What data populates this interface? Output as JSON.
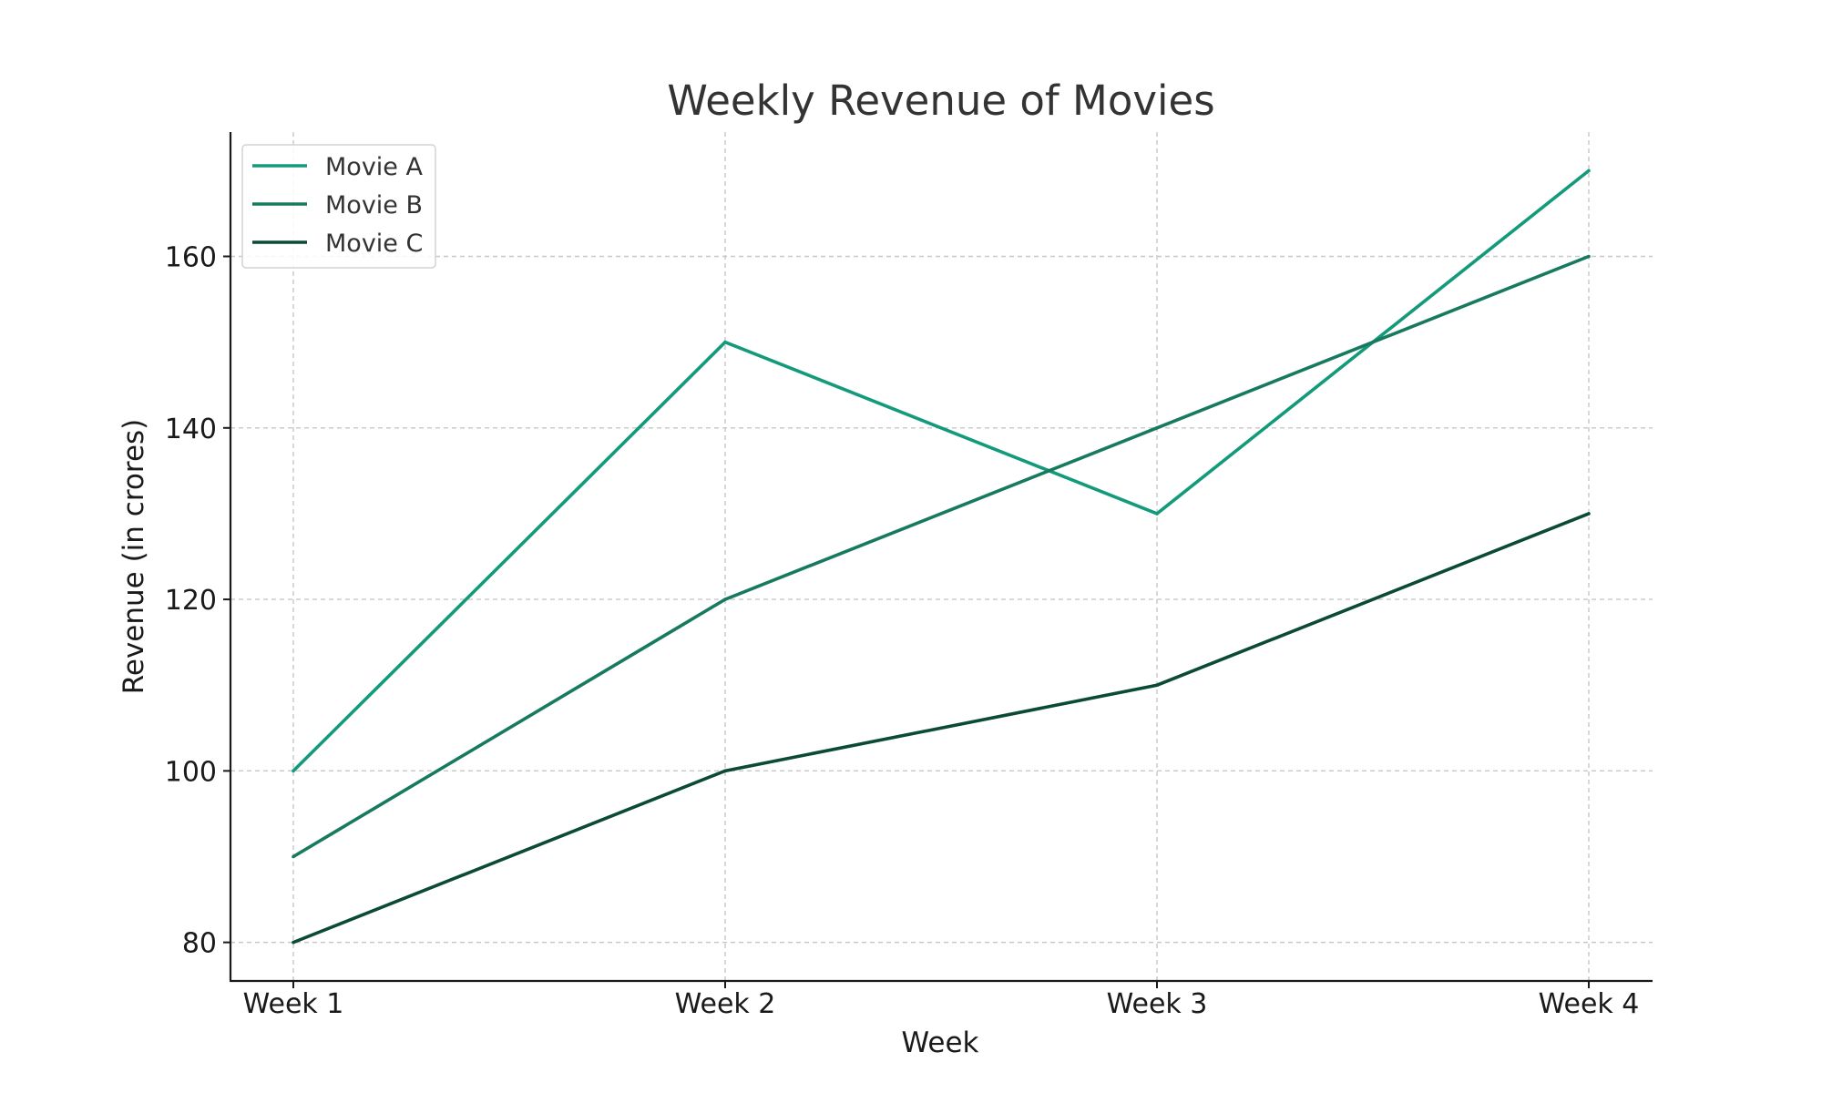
{
  "chart_data": {
    "type": "line",
    "title": "Weekly Revenue of Movies",
    "xlabel": "Week",
    "ylabel": "Revenue (in crores)",
    "categories": [
      "Week 1",
      "Week 2",
      "Week 3",
      "Week 4"
    ],
    "series": [
      {
        "name": "Movie A",
        "values": [
          100,
          150,
          130,
          170
        ],
        "color": "#139a7a"
      },
      {
        "name": "Movie B",
        "values": [
          90,
          120,
          140,
          160
        ],
        "color": "#177a5f"
      },
      {
        "name": "Movie C",
        "values": [
          80,
          100,
          110,
          130
        ],
        "color": "#0c4a38"
      }
    ],
    "yticks": [
      80,
      100,
      120,
      140,
      160
    ],
    "ylim": [
      75.5,
      174.5
    ],
    "grid": true,
    "legend_position": "top-left"
  }
}
